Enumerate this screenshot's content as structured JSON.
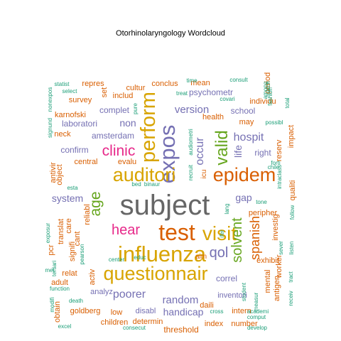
{
  "chart_data": {
    "type": "wordcloud",
    "title": "Otorhinolaryngology  Wordcloud",
    "colors": {
      "dark_gray": "#666666",
      "gold": "#D8A400",
      "purple": "#7570B3",
      "orange": "#D95F02",
      "green": "#1B9E77",
      "magenta": "#E7298A",
      "lime": "#66A61E",
      "brown": "#A6761D"
    },
    "words": [
      {
        "text": "subject",
        "size": 40,
        "color": "#666666"
      },
      {
        "text": "test",
        "size": 32,
        "color": "#D95F02"
      },
      {
        "text": "influenza",
        "size": 31,
        "color": "#D8A400"
      },
      {
        "text": "expos",
        "size": 31,
        "color": "#7570B3"
      },
      {
        "text": "perform",
        "size": 29,
        "color": "#D8A400"
      },
      {
        "text": "visit",
        "size": 28,
        "color": "#D8A400"
      },
      {
        "text": "questionnair",
        "size": 27,
        "color": "#D8A400"
      },
      {
        "text": "epidem",
        "size": 27,
        "color": "#D95F02"
      },
      {
        "text": "auditori",
        "size": 27,
        "color": "#D8A400"
      },
      {
        "text": "valid",
        "size": 24,
        "color": "#66A61E"
      },
      {
        "text": "clinic",
        "size": 21,
        "color": "#E7298A"
      },
      {
        "text": "age",
        "size": 21,
        "color": "#66A61E"
      },
      {
        "text": "hear",
        "size": 20,
        "color": "#E7298A"
      },
      {
        "text": "solvent",
        "size": 20,
        "color": "#66A61E"
      },
      {
        "text": "qol",
        "size": 20,
        "color": "#7570B3"
      },
      {
        "text": "spanish",
        "size": 18,
        "color": "#D95F02"
      },
      {
        "text": "hospit",
        "size": 16,
        "color": "#7570B3"
      },
      {
        "text": "occur",
        "size": 16,
        "color": "#7570B3"
      },
      {
        "text": "poorer",
        "size": 16,
        "color": "#7570B3"
      },
      {
        "text": "random",
        "size": 15,
        "color": "#7570B3"
      },
      {
        "text": "version",
        "size": 15,
        "color": "#7570B3"
      },
      {
        "text": "system",
        "size": 14,
        "color": "#7570B3"
      },
      {
        "text": "non",
        "size": 14,
        "color": "#7570B3"
      },
      {
        "text": "life",
        "size": 14,
        "color": "#7570B3"
      },
      {
        "text": "gap",
        "size": 14,
        "color": "#7570B3"
      },
      {
        "text": "handicap",
        "size": 14,
        "color": "#7570B3"
      },
      {
        "text": "correl",
        "size": 12,
        "color": "#7570B3"
      },
      {
        "text": "threshold",
        "size": 12,
        "color": "#D95F02"
      },
      {
        "text": "psychometr",
        "size": 12,
        "color": "#7570B3"
      },
      {
        "text": "complet",
        "size": 12,
        "color": "#7570B3"
      },
      {
        "text": "amsterdam",
        "size": 12,
        "color": "#7570B3"
      },
      {
        "text": "laboratori",
        "size": 12,
        "color": "#7570B3"
      },
      {
        "text": "confirm",
        "size": 12,
        "color": "#7570B3"
      },
      {
        "text": "right",
        "size": 12,
        "color": "#7570B3"
      },
      {
        "text": "school",
        "size": 12,
        "color": "#7570B3"
      },
      {
        "text": "inventori",
        "size": 11,
        "color": "#7570B3"
      },
      {
        "text": "disabl",
        "size": 11,
        "color": "#7570B3"
      },
      {
        "text": "analyz",
        "size": 11,
        "color": "#7570B3"
      },
      {
        "text": "number",
        "size": 11,
        "color": "#D95F02"
      },
      {
        "text": "index",
        "size": 11,
        "color": "#D95F02"
      },
      {
        "text": "conclus",
        "size": 11,
        "color": "#D95F02"
      },
      {
        "text": "mean",
        "size": 11,
        "color": "#D95F02"
      },
      {
        "text": "health",
        "size": 11,
        "color": "#D95F02"
      },
      {
        "text": "may",
        "size": 11,
        "color": "#D95F02"
      },
      {
        "text": "central",
        "size": 11,
        "color": "#D95F02"
      },
      {
        "text": "evalu",
        "size": 11,
        "color": "#D95F02"
      },
      {
        "text": "neck",
        "size": 11,
        "color": "#D95F02"
      },
      {
        "text": "repres",
        "size": 11,
        "color": "#D95F02"
      },
      {
        "text": "cultur",
        "size": 11,
        "color": "#D95F02"
      },
      {
        "text": "karnofski",
        "size": 11,
        "color": "#D95F02"
      },
      {
        "text": "survey",
        "size": 11,
        "color": "#D95F02"
      },
      {
        "text": "includ",
        "size": 11,
        "color": "#D95F02"
      },
      {
        "text": "individu",
        "size": 11,
        "color": "#D95F02"
      },
      {
        "text": "intern",
        "size": 11,
        "color": "#D95F02"
      },
      {
        "text": "relat",
        "size": 11,
        "color": "#D95F02"
      },
      {
        "text": "adult",
        "size": 11,
        "color": "#D95F02"
      },
      {
        "text": "determin",
        "size": 11,
        "color": "#D95F02"
      },
      {
        "text": "low",
        "size": 11,
        "color": "#D95F02"
      },
      {
        "text": "children",
        "size": 11,
        "color": "#D95F02"
      },
      {
        "text": "goldberg",
        "size": 11,
        "color": "#D95F02"
      },
      {
        "text": "daili",
        "size": 11,
        "color": "#D95F02"
      },
      {
        "text": "exhibit",
        "size": 11,
        "color": "#D95F02"
      },
      {
        "text": "period",
        "size": 11,
        "color": "#D95F02"
      },
      {
        "text": "peripher",
        "size": 11,
        "color": "#D95F02"
      },
      {
        "text": "investig",
        "size": 11,
        "color": "#D95F02"
      },
      {
        "text": "set",
        "size": 11,
        "color": "#D95F02"
      },
      {
        "text": "pcr",
        "size": 11,
        "color": "#D95F02"
      },
      {
        "text": "care",
        "size": 11,
        "color": "#D95F02"
      },
      {
        "text": "mental",
        "size": 11,
        "color": "#D95F02"
      },
      {
        "text": "worker",
        "size": 11,
        "color": "#D95F02"
      },
      {
        "text": "antigen",
        "size": 11,
        "color": "#D95F02"
      },
      {
        "text": "reserv",
        "size": 11,
        "color": "#D95F02"
      },
      {
        "text": "impact",
        "size": 11,
        "color": "#D95F02"
      },
      {
        "text": "qualiti",
        "size": 11,
        "color": "#D95F02"
      },
      {
        "text": "object",
        "size": 11,
        "color": "#D95F02"
      },
      {
        "text": "translat",
        "size": 11,
        "color": "#D95F02"
      },
      {
        "text": "signifi",
        "size": 11,
        "color": "#D95F02"
      },
      {
        "text": "cant",
        "size": 11,
        "color": "#D95F02"
      },
      {
        "text": "reliabl",
        "size": 11,
        "color": "#D95F02"
      },
      {
        "text": "activ",
        "size": 11,
        "color": "#D95F02"
      },
      {
        "text": "antivir",
        "size": 11,
        "color": "#D95F02"
      },
      {
        "text": "obtain",
        "size": 11,
        "color": "#D95F02"
      },
      {
        "text": "icu",
        "size": 10,
        "color": "#D95F02"
      },
      {
        "text": "aim",
        "size": 10,
        "color": "#D95F02"
      },
      {
        "text": "statist",
        "size": 8,
        "color": "#1B9E77"
      },
      {
        "text": "select",
        "size": 8,
        "color": "#1B9E77"
      },
      {
        "text": "nonexpos",
        "size": 8,
        "color": "#1B9E77"
      },
      {
        "text": "signund",
        "size": 8,
        "color": "#1B9E77"
      },
      {
        "text": "exposur",
        "size": 8,
        "color": "#1B9E77"
      },
      {
        "text": "esta",
        "size": 8,
        "color": "#1B9E77"
      },
      {
        "text": "bed",
        "size": 8,
        "color": "#1B9E77"
      },
      {
        "text": "binaur",
        "size": 8,
        "color": "#1B9E77"
      },
      {
        "text": "recruit",
        "size": 8,
        "color": "#1B9E77"
      },
      {
        "text": "audiometri",
        "size": 8,
        "color": "#1B9E77"
      },
      {
        "text": "time",
        "size": 8,
        "color": "#1B9E77"
      },
      {
        "text": "treat",
        "size": 8,
        "color": "#1B9E77"
      },
      {
        "text": "consult",
        "size": 8,
        "color": "#1B9E77"
      },
      {
        "text": "covari",
        "size": 8,
        "color": "#1B9E77"
      },
      {
        "text": "match",
        "size": 8,
        "color": "#1B9E77"
      },
      {
        "text": "among",
        "size": 8,
        "color": "#1B9E77"
      },
      {
        "text": "fashion",
        "size": 8,
        "color": "#1B9E77"
      },
      {
        "text": "possibl",
        "size": 8,
        "color": "#1B9E77"
      },
      {
        "text": "total",
        "size": 8,
        "color": "#1B9E77"
      },
      {
        "text": "forti",
        "size": 8,
        "color": "#1B9E77"
      },
      {
        "text": "chile",
        "size": 8,
        "color": "#1B9E77"
      },
      {
        "text": "intraclass",
        "size": 8,
        "color": "#1B9E77"
      },
      {
        "text": "follow",
        "size": 8,
        "color": "#1B9E77"
      },
      {
        "text": "pure",
        "size": 8,
        "color": "#1B9E77"
      },
      {
        "text": "tone",
        "size": 8,
        "color": "#1B9E77"
      },
      {
        "text": "lang",
        "size": 8,
        "color": "#1B9E77"
      },
      {
        "text": "ifer",
        "size": 8,
        "color": "#1B9E77"
      },
      {
        "text": "student",
        "size": 8,
        "color": "#1B9E77"
      },
      {
        "text": "measur",
        "size": 8,
        "color": "#1B9E77"
      },
      {
        "text": "sever",
        "size": 8,
        "color": "#1B9E77"
      },
      {
        "text": "listen",
        "size": 8,
        "color": "#1B9E77"
      },
      {
        "text": "academi",
        "size": 8,
        "color": "#1B9E77"
      },
      {
        "text": "comput",
        "size": 8,
        "color": "#1B9E77"
      },
      {
        "text": "develop",
        "size": 8,
        "color": "#1B9E77"
      },
      {
        "text": "tract",
        "size": 8,
        "color": "#1B9E77"
      },
      {
        "text": "receiv",
        "size": 8,
        "color": "#1B9E77"
      },
      {
        "text": "center",
        "size": 8,
        "color": "#1B9E77"
      },
      {
        "text": "educ",
        "size": 8,
        "color": "#1B9E77"
      },
      {
        "text": "pearson",
        "size": 8,
        "color": "#1B9E77"
      },
      {
        "text": "tertiari",
        "size": 8,
        "color": "#1B9E77"
      },
      {
        "text": "met",
        "size": 8,
        "color": "#1B9E77"
      },
      {
        "text": "function",
        "size": 8,
        "color": "#1B9E77"
      },
      {
        "text": "modifi",
        "size": 8,
        "color": "#1B9E77"
      },
      {
        "text": "death",
        "size": 8,
        "color": "#1B9E77"
      },
      {
        "text": "excel",
        "size": 8,
        "color": "#1B9E77"
      },
      {
        "text": "consecut",
        "size": 8,
        "color": "#1B9E77"
      },
      {
        "text": "cross",
        "size": 8,
        "color": "#1B9E77"
      }
    ]
  }
}
